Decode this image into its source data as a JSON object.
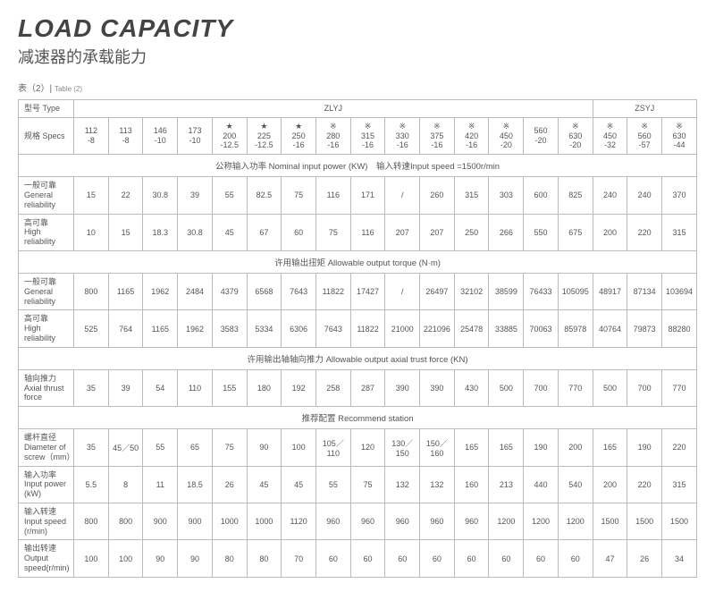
{
  "header": {
    "title_en": "LOAD CAPACITY",
    "title_zh": "减速器的承载能力",
    "table_label_zh": "表（2）|",
    "table_label_en": "Table (2)"
  },
  "th": {
    "type": "型号 Type",
    "zlyj": "ZLYJ",
    "zsyj": "ZSYJ",
    "specs": "规格 Specs"
  },
  "specs": {
    "marks": [
      "",
      "",
      "",
      "",
      "★",
      "★",
      "★",
      "※",
      "※",
      "※",
      "※",
      "※",
      "※",
      "",
      "※",
      "※",
      "※",
      "※"
    ],
    "top": [
      "112",
      "113",
      "146",
      "173",
      "200",
      "225",
      "250",
      "280",
      "315",
      "330",
      "375",
      "420",
      "450",
      "560",
      "630",
      "450",
      "560",
      "630"
    ],
    "bot": [
      "-8",
      "-8",
      "-10",
      "-10",
      "-12.5",
      "-12.5",
      "-16",
      "-16",
      "-16",
      "-16",
      "-16",
      "-16",
      "-20",
      "-20",
      "-20",
      "-32",
      "-57",
      "-44"
    ]
  },
  "sections": {
    "s1": "公称输入功率 Nominal input power (KW)　输入转速Input speed =1500r/min",
    "s2": "许用输出扭矩 Allowable output torque (N·m)",
    "s3": "许用输出轴轴向推力 Allowable output axial trust force (KN)",
    "s4": "推荐配置 Recommend station"
  },
  "rows": {
    "r1": {
      "label": "一般可靠\nGeneral reliability",
      "v": [
        "15",
        "22",
        "30.8",
        "39",
        "55",
        "82.5",
        "75",
        "116",
        "171",
        "/",
        "260",
        "315",
        "303",
        "600",
        "825",
        "240",
        "240",
        "370"
      ]
    },
    "r2": {
      "label": "高可靠\nHigh reliability",
      "v": [
        "10",
        "15",
        "18.3",
        "30.8",
        "45",
        "67",
        "60",
        "75",
        "116",
        "207",
        "207",
        "250",
        "266",
        "550",
        "675",
        "200",
        "220",
        "315"
      ]
    },
    "r3": {
      "label": "一般可靠\nGeneral reliability",
      "v": [
        "800",
        "1165",
        "1962",
        "2484",
        "4379",
        "6568",
        "7643",
        "11822",
        "17427",
        "/",
        "26497",
        "32102",
        "38599",
        "76433",
        "105095",
        "48917",
        "87134",
        "103694"
      ]
    },
    "r4": {
      "label": "高可靠\nHigh reliability",
      "v": [
        "525",
        "764",
        "1165",
        "1962",
        "3583",
        "5334",
        "6306",
        "7643",
        "11822",
        "21000",
        "221096",
        "25478",
        "33885",
        "70063",
        "85978",
        "40764",
        "79873",
        "88280"
      ]
    },
    "r5": {
      "label": "轴向推力\nAxial thrust force",
      "v": [
        "35",
        "39",
        "54",
        "110",
        "155",
        "180",
        "192",
        "258",
        "287",
        "390",
        "390",
        "430",
        "500",
        "700",
        "770",
        "500",
        "700",
        "770"
      ]
    },
    "r6": {
      "label": "螺杆直径\nDiameter of screw（mm）",
      "v": [
        "35",
        "45／50",
        "55",
        "65",
        "75",
        "90",
        "100",
        "105／110",
        "120",
        "130／150",
        "150／160",
        "165",
        "165",
        "190",
        "200",
        "165",
        "190",
        "220"
      ]
    },
    "r7": {
      "label": "输入功率\nInput power (kW)",
      "v": [
        "5.5",
        "8",
        "11",
        "18.5",
        "26",
        "45",
        "45",
        "55",
        "75",
        "132",
        "132",
        "160",
        "213",
        "440",
        "540",
        "200",
        "220",
        "315"
      ]
    },
    "r8": {
      "label": "输入转速\nInput speed (r/min)",
      "v": [
        "800",
        "800",
        "900",
        "900",
        "1000",
        "1000",
        "1120",
        "960",
        "960",
        "960",
        "960",
        "960",
        "1200",
        "1200",
        "1200",
        "1500",
        "1500",
        "1500"
      ]
    },
    "r9": {
      "label": "输出转速\nOutput speed(r/min)",
      "v": [
        "100",
        "100",
        "90",
        "90",
        "80",
        "80",
        "70",
        "60",
        "60",
        "60",
        "60",
        "60",
        "60",
        "60",
        "60",
        "47",
        "26",
        "34"
      ]
    }
  }
}
